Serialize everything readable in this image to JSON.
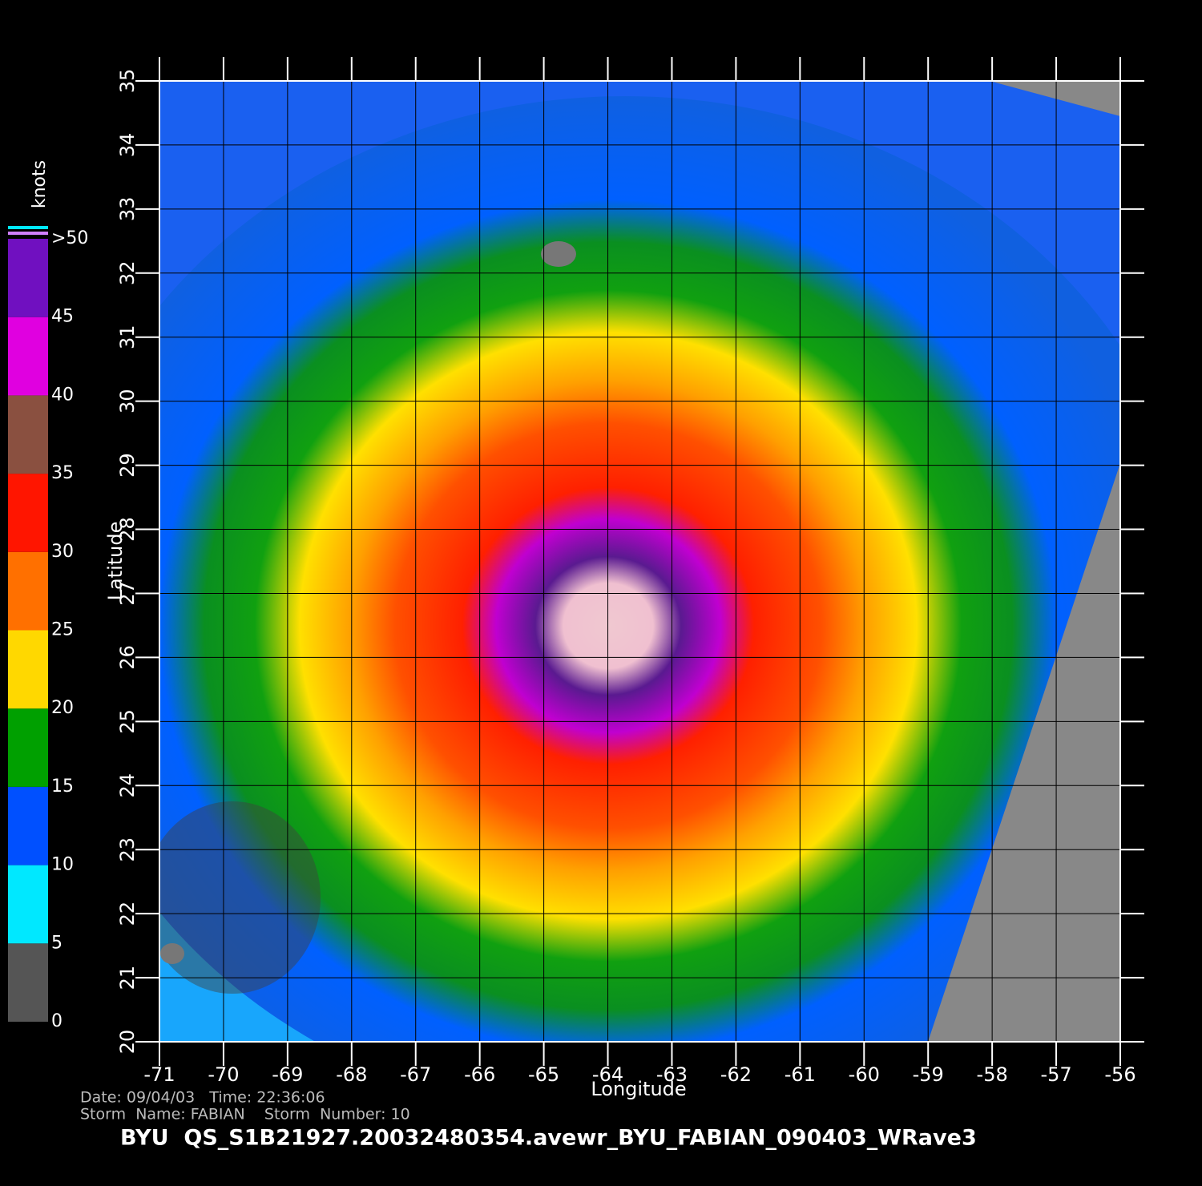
{
  "map": {
    "x_label": "Longitude",
    "y_label": "Latitude",
    "xlim": [
      -71,
      -56
    ],
    "ylim": [
      20,
      35
    ],
    "xticks": [
      -71,
      -70,
      -69,
      -68,
      -67,
      -66,
      -65,
      -64,
      -63,
      -62,
      -61,
      -60,
      -59,
      -58,
      -57,
      -56
    ],
    "yticks": [
      20,
      21,
      22,
      23,
      24,
      25,
      26,
      27,
      28,
      29,
      30,
      31,
      32,
      33,
      34,
      35
    ],
    "grid": true,
    "colorbar": {
      "title": "knots",
      "lim": [
        0,
        50
      ],
      "ticks": [
        0,
        5,
        10,
        15,
        20,
        25,
        30,
        35,
        40,
        45,
        {
          "value": 50,
          "label": ">50"
        }
      ],
      "colors": [
        "#555555",
        "#00e8ff",
        "#0050ff",
        "#00a000",
        "#ffd800",
        "#ff7000",
        "#ff1500",
        "#8a5040",
        "#e000e0",
        "#7010c0"
      ]
    },
    "info_line_1": "Date: 09/04/03   Time: 22:36:06",
    "info_line_2": "Storm  Name: FABIAN    Storm  Number: 10",
    "footer": "BYU  QS_S1B21927.20032480354.avewr_BYU_FABIAN_090403_WRave3"
  }
}
